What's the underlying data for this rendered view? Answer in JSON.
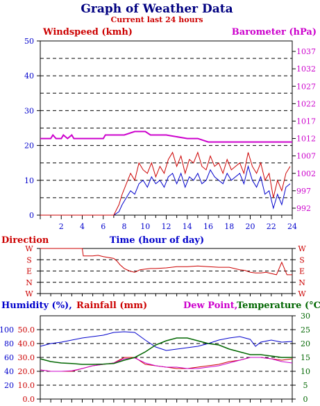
{
  "title": "Graph of Weather Data",
  "subtitle": "Current last 24 hours",
  "colors": {
    "wind": "#cc0000",
    "gust": "#0000cc",
    "barometer": "#cc00cc",
    "title": "#000080",
    "humidity": "#0000cc",
    "rainfall": "#cc0000",
    "dewpoint": "#cc00cc",
    "temperature": "#006600",
    "axis": "#000000"
  },
  "chart_data": [
    {
      "type": "line",
      "name": "wind-barometer",
      "left_label": "Windspeed (kmh)",
      "right_label": "Barometer (hPa)",
      "xlabel": "Time (hour of day)",
      "x_ticks": [
        "2",
        "4",
        "6",
        "8",
        "10",
        "12",
        "14",
        "16",
        "18",
        "20",
        "22",
        "24"
      ],
      "xlim": [
        0,
        24
      ],
      "ylim": [
        0,
        50
      ],
      "left_ticks": [
        "0",
        "10",
        "20",
        "30",
        "40",
        "50"
      ],
      "right_ticks": [
        "992",
        "997",
        "1002",
        "1007",
        "1012",
        "1017",
        "1022",
        "1027",
        "1032",
        "1037"
      ],
      "y2lim": [
        990,
        1040
      ],
      "grid": true,
      "series": [
        {
          "key": "windspeed",
          "x": [
            0,
            6.5,
            7,
            7.5,
            7.8,
            8.2,
            8.6,
            9,
            9.4,
            9.8,
            10.2,
            10.6,
            11,
            11.4,
            11.8,
            12.2,
            12.6,
            13,
            13.4,
            13.8,
            14.2,
            14.6,
            15,
            15.4,
            15.8,
            16.2,
            16.6,
            17,
            17.4,
            17.8,
            18.2,
            18.6,
            19,
            19.4,
            19.8,
            20.2,
            20.6,
            21,
            21.4,
            21.8,
            22.2,
            22.6,
            23,
            23.4,
            23.8
          ],
          "y": [
            0,
            0,
            0,
            3,
            6,
            9,
            12,
            10,
            15,
            13,
            12,
            15,
            11,
            14,
            12,
            16,
            18,
            14,
            17,
            12,
            16,
            15,
            18,
            14,
            13,
            17,
            14,
            15,
            12,
            16,
            13,
            14,
            15,
            12,
            18,
            14,
            12,
            15,
            10,
            12,
            5,
            10,
            7,
            12,
            14
          ]
        },
        {
          "key": "gust",
          "x": [
            0,
            6.5,
            7,
            7.5,
            7.8,
            8.2,
            8.6,
            9,
            9.4,
            9.8,
            10.2,
            10.6,
            11,
            11.4,
            11.8,
            12.2,
            12.6,
            13,
            13.4,
            13.8,
            14.2,
            14.6,
            15,
            15.4,
            15.8,
            16.2,
            16.6,
            17,
            17.4,
            17.8,
            18.2,
            18.6,
            19,
            19.4,
            19.8,
            20.2,
            20.6,
            21,
            21.4,
            21.8,
            22.2,
            22.6,
            23,
            23.4,
            23.8
          ],
          "y": [
            0,
            0,
            0,
            1,
            3,
            5,
            7,
            6,
            9,
            10,
            8,
            11,
            9,
            10,
            8,
            11,
            12,
            9,
            12,
            8,
            11,
            10,
            12,
            9,
            10,
            13,
            11,
            10,
            9,
            12,
            10,
            11,
            12,
            9,
            14,
            10,
            8,
            11,
            6,
            7,
            2,
            6,
            3,
            8,
            9
          ]
        },
        {
          "key": "barometer",
          "x": [
            0,
            1,
            1.2,
            1.5,
            2,
            2.2,
            2.6,
            3,
            3.2,
            3.6,
            4,
            6,
            6.2,
            8,
            9,
            10,
            10.5,
            12,
            14,
            15,
            16,
            18,
            19,
            20,
            20.5,
            21,
            22,
            24
          ],
          "y": [
            1012,
            1012,
            1013,
            1012,
            1012,
            1013,
            1012,
            1013,
            1012,
            1012,
            1012,
            1012,
            1013,
            1013,
            1014,
            1014,
            1013,
            1013,
            1012,
            1012,
            1011,
            1011,
            1011,
            1011,
            1011,
            1011,
            1011,
            1011
          ]
        }
      ]
    },
    {
      "type": "line",
      "name": "wind-direction",
      "title": "Direction",
      "left_ticks": [
        "W",
        "S",
        "E",
        "N",
        "W"
      ],
      "right_ticks": [
        "W",
        "S",
        "E",
        "N",
        "W"
      ],
      "ylim": [
        0,
        360
      ],
      "xlim": [
        0,
        24
      ],
      "series": [
        {
          "key": "direction",
          "x": [
            0,
            4,
            4.1,
            5,
            5.5,
            6,
            7,
            7.3,
            7.6,
            8,
            8.5,
            9,
            9.5,
            10,
            10.5,
            11,
            12,
            12.5,
            13,
            14,
            15,
            16,
            17,
            18,
            19,
            19.5,
            20,
            20.5,
            21,
            21.5,
            22,
            22.5,
            23,
            23.5,
            24
          ],
          "y": [
            360,
            360,
            300,
            300,
            305,
            295,
            280,
            260,
            230,
            200,
            180,
            170,
            190,
            195,
            200,
            200,
            205,
            210,
            215,
            215,
            220,
            215,
            210,
            210,
            190,
            185,
            170,
            165,
            165,
            170,
            160,
            150,
            250,
            150,
            150
          ]
        }
      ]
    },
    {
      "type": "line",
      "name": "humidity-rain-temp",
      "labels": {
        "humidity": "Humidity (%),",
        "rainfall": "Rainfall (mm)",
        "dewpoint": "Dew Point,",
        "temperature": "Temperature (°C)"
      },
      "humidity_ticks": [
        "20",
        "40",
        "60",
        "80",
        "100"
      ],
      "rainfall_ticks": [
        "0.0",
        "10.0",
        "20.0",
        "30.0",
        "40.0",
        "50.0"
      ],
      "temp_ticks": [
        "0",
        "5",
        "10",
        "15",
        "20",
        "25",
        "30"
      ],
      "humidity_lim": [
        0,
        120
      ],
      "rainfall_lim": [
        0,
        60
      ],
      "temp_lim": [
        0,
        30
      ],
      "xlim": [
        0,
        24
      ],
      "series": [
        {
          "key": "humidity",
          "x": [
            0,
            1,
            2,
            3,
            4,
            5,
            6,
            7,
            8,
            9,
            10,
            11,
            12,
            13,
            14,
            15,
            16,
            17,
            18,
            19,
            20,
            20.5,
            21,
            22,
            23,
            24
          ],
          "y": [
            76,
            80,
            82,
            85,
            88,
            90,
            92,
            96,
            97,
            96,
            85,
            75,
            70,
            72,
            74,
            76,
            80,
            85,
            88,
            90,
            86,
            76,
            82,
            85,
            82,
            83
          ]
        },
        {
          "key": "rainfall",
          "x": [
            0,
            1,
            2,
            3,
            4,
            5,
            6,
            7,
            8,
            9,
            10,
            11,
            12,
            13,
            14,
            15,
            16,
            17,
            18,
            19,
            20,
            21,
            22,
            23,
            24
          ],
          "y": [
            21,
            20,
            20,
            20,
            22,
            24,
            25,
            26,
            30,
            30,
            25,
            24,
            23,
            22,
            22,
            23,
            24,
            25,
            27,
            28,
            30,
            30,
            29,
            28,
            29
          ]
        },
        {
          "key": "dewpoint",
          "x": [
            0,
            1,
            2,
            3,
            4,
            5,
            6,
            7,
            8,
            9,
            10,
            11,
            12,
            13,
            14,
            15,
            16,
            17,
            18,
            19,
            20,
            21,
            22,
            23,
            24
          ],
          "y": [
            10.5,
            10,
            10,
            10.2,
            11,
            12,
            12.5,
            13,
            14.5,
            14.8,
            13,
            12,
            11.5,
            11.5,
            11,
            11,
            11.5,
            12,
            13,
            14,
            15,
            15,
            14.5,
            13.5,
            13
          ]
        },
        {
          "key": "temperature",
          "x": [
            0,
            1,
            2,
            3,
            4,
            5,
            6,
            7,
            8,
            9,
            10,
            11,
            12,
            13,
            14,
            15,
            16,
            17,
            18,
            19,
            20,
            21,
            22,
            23,
            24
          ],
          "y": [
            14.5,
            13.5,
            13,
            12.8,
            12.5,
            12.5,
            12.6,
            12.8,
            14,
            15,
            17,
            19.5,
            21,
            22,
            22,
            21,
            20,
            19.5,
            18,
            17,
            16,
            16,
            15.5,
            15,
            15
          ]
        }
      ]
    }
  ]
}
